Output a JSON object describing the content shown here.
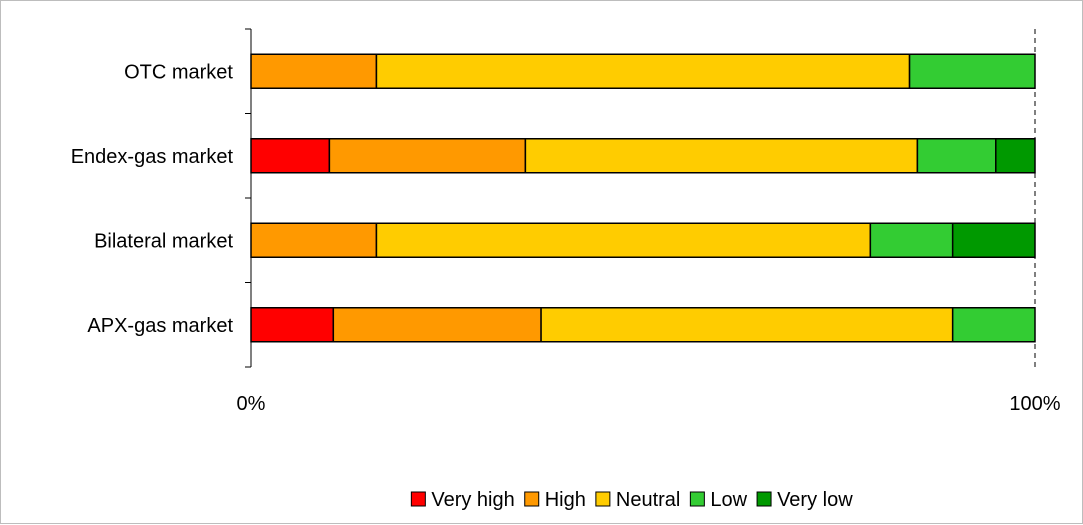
{
  "chart_data": {
    "type": "bar",
    "orientation": "horizontal",
    "stacked": "percent",
    "categories": [
      "OTC market",
      "Endex-gas market",
      "Bilateral market",
      "APX-gas market"
    ],
    "series": [
      {
        "name": "Very high",
        "color": "#ff0000",
        "values": [
          0,
          10,
          0,
          10.5
        ]
      },
      {
        "name": "High",
        "color": "#ff9900",
        "values": [
          16,
          25,
          16,
          26.5
        ]
      },
      {
        "name": "Neutral",
        "color": "#ffcc00",
        "values": [
          68,
          50,
          63,
          52.5
        ]
      },
      {
        "name": "Low",
        "color": "#33cc33",
        "values": [
          16,
          10,
          10.5,
          10.5
        ]
      },
      {
        "name": "Very low",
        "color": "#009900",
        "values": [
          0,
          5,
          10.5,
          0
        ]
      }
    ],
    "x_ticks": [
      "0%",
      "100%"
    ],
    "xlim": [
      0,
      100
    ],
    "legend_position": "bottom",
    "grid": false
  }
}
